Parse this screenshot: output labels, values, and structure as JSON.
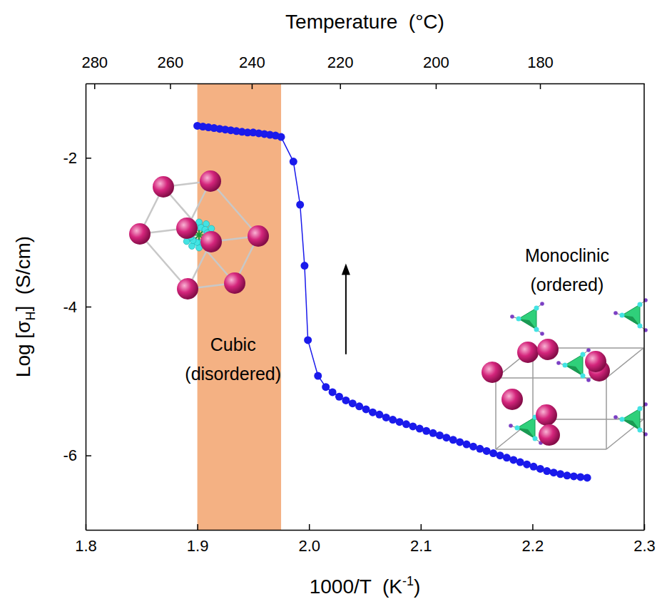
{
  "chart_data": {
    "type": "line",
    "x2_label": "Temperature  (°C)",
    "x_label": {
      "text": "1000/T  (K",
      "superscript": "-1",
      "suffix": ")"
    },
    "y_label": {
      "text": "Log [σ",
      "subscript": "H",
      "suffix": "]  (S/cm)"
    },
    "x": [
      1.9,
      1.905,
      1.91,
      1.915,
      1.92,
      1.925,
      1.93,
      1.935,
      1.94,
      1.945,
      1.95,
      1.955,
      1.96,
      1.965,
      1.97,
      1.975,
      1.986,
      1.992,
      1.996,
      1.999,
      2.008,
      2.015,
      2.021,
      2.027,
      2.033,
      2.039,
      2.045,
      2.051,
      2.057,
      2.063,
      2.069,
      2.075,
      2.081,
      2.087,
      2.093,
      2.099,
      2.105,
      2.111,
      2.117,
      2.123,
      2.129,
      2.135,
      2.141,
      2.147,
      2.153,
      2.159,
      2.165,
      2.171,
      2.177,
      2.183,
      2.189,
      2.195,
      2.201,
      2.207,
      2.213,
      2.219,
      2.225,
      2.231,
      2.237,
      2.243,
      2.249
    ],
    "values": [
      -1.57,
      -1.58,
      -1.59,
      -1.6,
      -1.61,
      -1.62,
      -1.63,
      -1.64,
      -1.65,
      -1.66,
      -1.66,
      -1.67,
      -1.68,
      -1.69,
      -1.7,
      -1.72,
      -2.05,
      -2.63,
      -3.45,
      -4.45,
      -4.93,
      -5.08,
      -5.15,
      -5.21,
      -5.26,
      -5.3,
      -5.34,
      -5.38,
      -5.42,
      -5.45,
      -5.49,
      -5.52,
      -5.55,
      -5.58,
      -5.61,
      -5.64,
      -5.67,
      -5.7,
      -5.73,
      -5.76,
      -5.79,
      -5.82,
      -5.85,
      -5.88,
      -5.91,
      -5.94,
      -5.97,
      -6.0,
      -6.03,
      -6.06,
      -6.09,
      -6.12,
      -6.15,
      -6.18,
      -6.21,
      -6.23,
      -6.25,
      -6.27,
      -6.28,
      -6.29,
      -6.3
    ],
    "color": "#1a1aeb",
    "marker": "circle",
    "line_style": "solid",
    "xlim": [
      1.8,
      2.3
    ],
    "xticks": [
      1.8,
      1.9,
      {
        "value": 2,
        "label": "2.0"
      },
      2.1,
      2.2,
      2.3
    ],
    "x2ticks": [
      280,
      260,
      240,
      220,
      200,
      180
    ],
    "ylim": [
      -7,
      -1
    ],
    "yticks": [
      -6,
      -4,
      -2
    ],
    "grid": false,
    "shaded_region": {
      "x": [
        1.9,
        1.975
      ],
      "color": "#f4b183"
    },
    "annotations": [
      {
        "lines": [
          "Cubic",
          "(disordered)"
        ],
        "x": 1.932,
        "y": -4.51
      },
      {
        "lines": [
          "Monoclinic",
          "(ordered)"
        ],
        "x": 2.231,
        "y": -3.31
      }
    ],
    "arrow": {
      "x": 2.033,
      "y": [
        -4.64,
        -3.42
      ]
    }
  }
}
